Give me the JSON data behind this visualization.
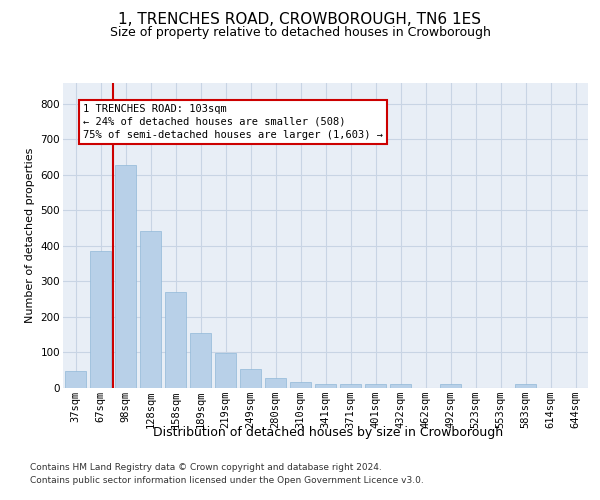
{
  "title": "1, TRENCHES ROAD, CROWBOROUGH, TN6 1ES",
  "subtitle": "Size of property relative to detached houses in Crowborough",
  "xlabel": "Distribution of detached houses by size in Crowborough",
  "ylabel": "Number of detached properties",
  "categories": [
    "37sqm",
    "67sqm",
    "98sqm",
    "128sqm",
    "158sqm",
    "189sqm",
    "219sqm",
    "249sqm",
    "280sqm",
    "310sqm",
    "341sqm",
    "371sqm",
    "401sqm",
    "432sqm",
    "462sqm",
    "492sqm",
    "523sqm",
    "553sqm",
    "583sqm",
    "614sqm",
    "644sqm"
  ],
  "values": [
    47,
    385,
    628,
    440,
    268,
    155,
    98,
    52,
    28,
    15,
    10,
    10,
    10,
    10,
    0,
    10,
    0,
    0,
    10,
    0,
    0
  ],
  "bar_color": "#b8d0e8",
  "bar_edgecolor": "#90b8d8",
  "vline_x_index": 2,
  "vline_color": "#cc0000",
  "annotation_line1": "1 TRENCHES ROAD: 103sqm",
  "annotation_line2": "← 24% of detached houses are smaller (508)",
  "annotation_line3": "75% of semi-detached houses are larger (1,603) →",
  "annotation_box_facecolor": "#ffffff",
  "annotation_box_edgecolor": "#cc0000",
  "ylim_max": 860,
  "yticks": [
    0,
    100,
    200,
    300,
    400,
    500,
    600,
    700,
    800
  ],
  "grid_color": "#c8d4e4",
  "axes_facecolor": "#e8eef6",
  "footer_text1": "Contains HM Land Registry data © Crown copyright and database right 2024.",
  "footer_text2": "Contains public sector information licensed under the Open Government Licence v3.0.",
  "title_fontsize": 11,
  "subtitle_fontsize": 9,
  "xlabel_fontsize": 9,
  "ylabel_fontsize": 8,
  "tick_fontsize": 7.5,
  "annotation_fontsize": 7.5,
  "footer_fontsize": 6.5
}
